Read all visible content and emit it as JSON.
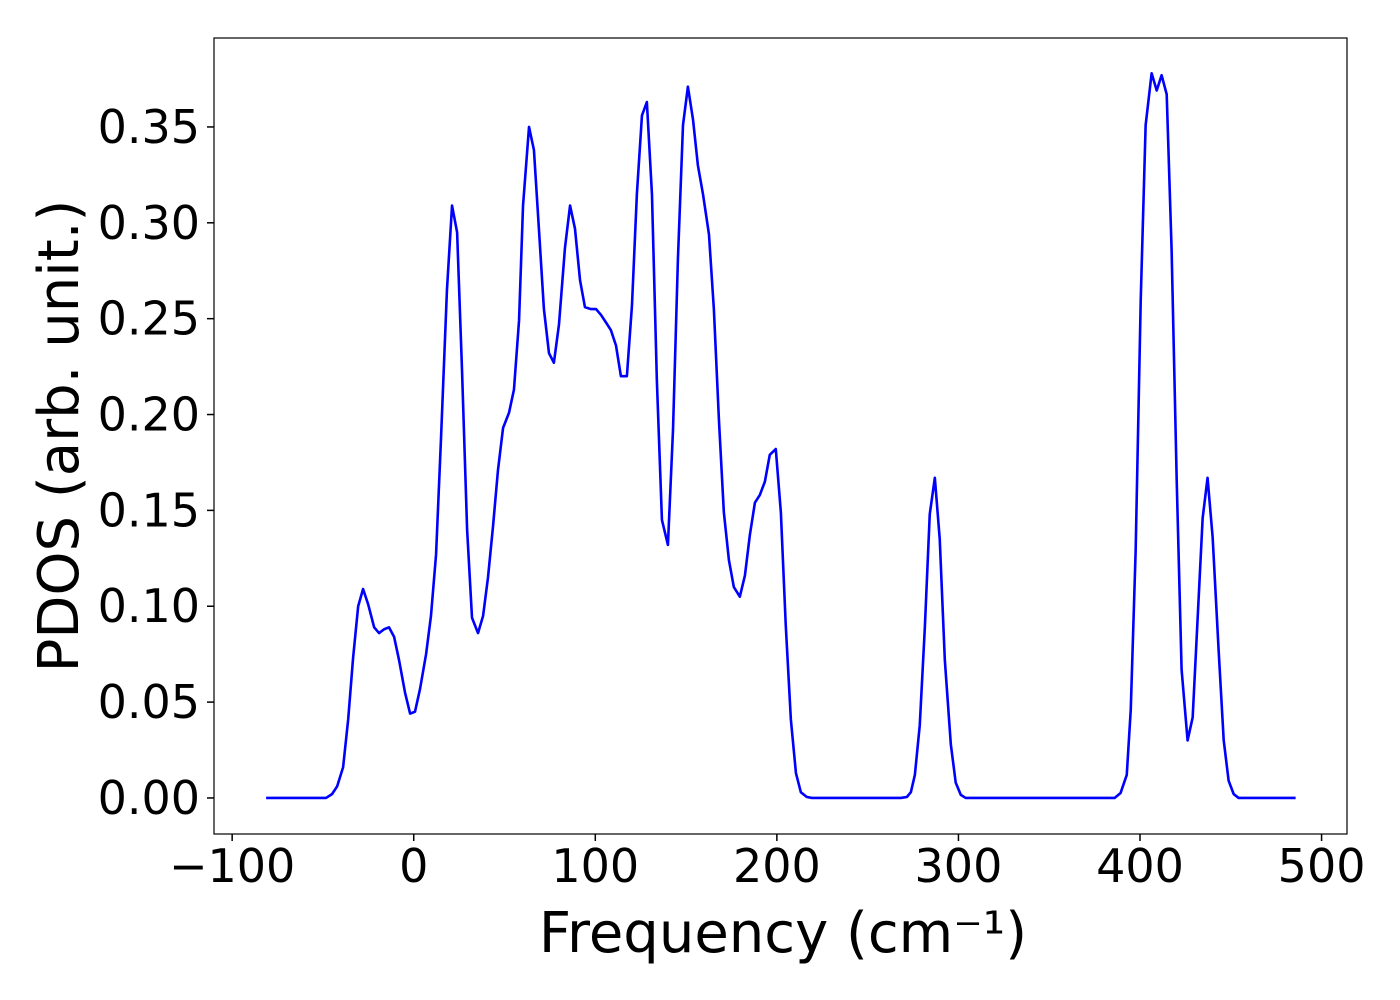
{
  "chart_data": {
    "type": "line",
    "xlabel": "Frequency (cm⁻¹)",
    "ylabel": "PDOS (arb. unit.)",
    "x": [
      -81.3,
      -48.3,
      -45.0,
      -42.2,
      -38.9,
      -36.1,
      -33.4,
      -30.6,
      -27.9,
      -25.1,
      -21.8,
      -19.1,
      -16.3,
      -13.6,
      -10.8,
      -8.1,
      -4.8,
      -2.0,
      0.7,
      3.5,
      6.8,
      9.5,
      12.3,
      15.0,
      18.3,
      21.1,
      23.9,
      26.6,
      29.4,
      32.1,
      35.4,
      38.2,
      40.9,
      43.7,
      46.4,
      49.2,
      52.5,
      55.2,
      58.0,
      60.2,
      63.5,
      66.2,
      69.0,
      71.7,
      74.5,
      77.2,
      80.0,
      83.3,
      86.1,
      88.8,
      91.6,
      94.3,
      97.6,
      100.4,
      103.1,
      105.9,
      108.6,
      111.4,
      114.1,
      117.4,
      120.2,
      122.9,
      125.7,
      128.4,
      131.2,
      133.9,
      136.7,
      140.0,
      142.8,
      145.5,
      148.3,
      151.0,
      153.8,
      156.5,
      159.3,
      162.6,
      165.3,
      168.1,
      170.8,
      173.6,
      176.3,
      179.6,
      182.4,
      185.1,
      187.9,
      190.6,
      193.4,
      196.1,
      199.4,
      202.2,
      204.9,
      207.7,
      210.5,
      213.2,
      216.5,
      219.3,
      268.2,
      271.6,
      273.8,
      276.0,
      278.7,
      281.5,
      284.2,
      287.0,
      289.7,
      292.5,
      295.8,
      298.5,
      301.3,
      304.0,
      386.0,
      389.3,
      392.7,
      394.9,
      397.6,
      400.4,
      403.1,
      406.4,
      409.2,
      411.9,
      414.7,
      417.4,
      420.2,
      422.9,
      426.2,
      429.0,
      431.7,
      434.5,
      437.2,
      440.0,
      443.3,
      446.1,
      448.8,
      451.6,
      454.3,
      485.7
    ],
    "series": [
      {
        "color": "#0000ff",
        "values": [
          0,
          0,
          0.002,
          0.006,
          0.016,
          0.041,
          0.073,
          0.1,
          0.109,
          0.101,
          0.089,
          0.086,
          0.088,
          0.089,
          0.084,
          0.072,
          0.055,
          0.044,
          0.045,
          0.057,
          0.075,
          0.095,
          0.127,
          0.187,
          0.265,
          0.309,
          0.295,
          0.223,
          0.14,
          0.094,
          0.086,
          0.095,
          0.115,
          0.142,
          0.171,
          0.193,
          0.201,
          0.213,
          0.249,
          0.309,
          0.35,
          0.338,
          0.296,
          0.255,
          0.232,
          0.227,
          0.247,
          0.287,
          0.309,
          0.297,
          0.27,
          0.256,
          0.255,
          0.255,
          0.252,
          0.248,
          0.244,
          0.236,
          0.22,
          0.22,
          0.257,
          0.315,
          0.356,
          0.363,
          0.315,
          0.218,
          0.145,
          0.132,
          0.192,
          0.281,
          0.351,
          0.371,
          0.354,
          0.33,
          0.315,
          0.294,
          0.255,
          0.197,
          0.149,
          0.124,
          0.11,
          0.105,
          0.116,
          0.137,
          0.154,
          0.158,
          0.165,
          0.179,
          0.182,
          0.149,
          0.09,
          0.041,
          0.013,
          0.003,
          0.0005,
          0,
          0,
          0.0005,
          0.003,
          0.012,
          0.038,
          0.089,
          0.148,
          0.167,
          0.135,
          0.072,
          0.028,
          0.008,
          0.0016,
          0,
          0,
          0.0026,
          0.012,
          0.046,
          0.129,
          0.26,
          0.351,
          0.378,
          0.369,
          0.377,
          0.367,
          0.286,
          0.166,
          0.067,
          0.03,
          0.042,
          0.093,
          0.146,
          0.167,
          0.136,
          0.077,
          0.03,
          0.009,
          0.002,
          0,
          0
        ]
      }
    ],
    "xlim": [
      -110,
      514
    ],
    "ylim": [
      -0.0188,
      0.3964
    ],
    "xticks": [
      {
        "value": -100,
        "label": "−100"
      },
      0,
      100,
      200,
      300,
      400,
      500
    ],
    "yticks": [
      {
        "value": 0,
        "label": "0.00"
      },
      {
        "value": 0.05,
        "label": "0.05"
      },
      {
        "value": 0.1,
        "label": "0.10"
      },
      {
        "value": 0.15,
        "label": "0.15"
      },
      {
        "value": 0.2,
        "label": "0.20"
      },
      {
        "value": 0.25,
        "label": "0.25"
      },
      {
        "value": 0.3,
        "label": "0.30"
      },
      {
        "value": 0.35,
        "label": "0.35"
      }
    ],
    "grid": false
  }
}
